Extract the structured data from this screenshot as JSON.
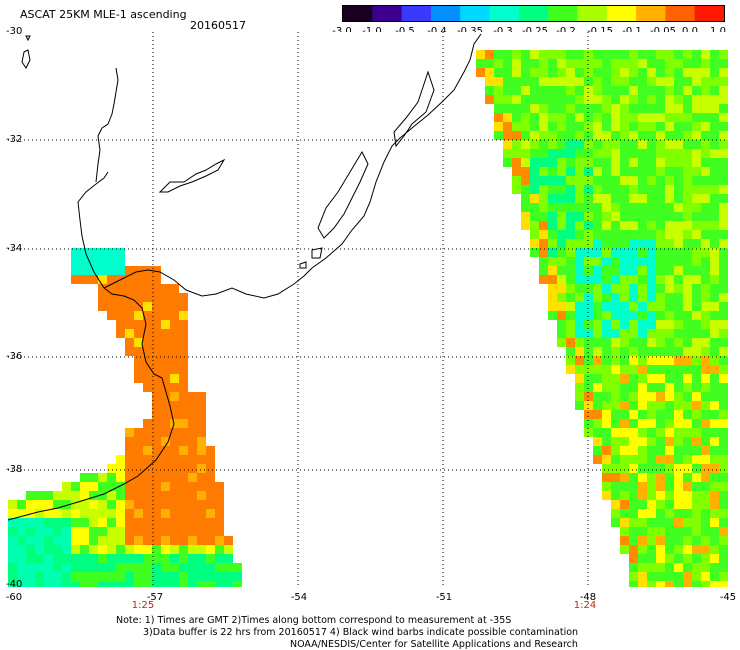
{
  "header": {
    "title": "ASCAT 25KM MLE-1 ascending",
    "date": "20160517"
  },
  "colorbar": {
    "labels": [
      "-3.0",
      "-1.0",
      "-0.5",
      "-0.4",
      "-0.35",
      "-0.3",
      "-0.25",
      "-0.2",
      "-0.15",
      "-0.1",
      "-0.05",
      "0.0",
      "1.0"
    ],
    "colors": [
      "#1a0020",
      "#3b0090",
      "#3a3aff",
      "#0090ff",
      "#00d8ff",
      "#00ffcc",
      "#00ff80",
      "#40ff20",
      "#a8ff00",
      "#ffff00",
      "#ffb000",
      "#ff6000",
      "#ff1800"
    ]
  },
  "axes": {
    "lat_labels": [
      "-30",
      "-32",
      "-34",
      "-36",
      "-38",
      "-40"
    ],
    "lon_labels": [
      "-60",
      "-57",
      "-54",
      "-51",
      "-48",
      "-45"
    ],
    "time_labels": [
      "1:25",
      "1:24"
    ]
  },
  "notes": {
    "line1": "Note: 1) Times are GMT 2)Times along bottom correspond to measurement at -35S",
    "line2": "3)Data buffer is 22 hrs from 20160517 4) Black wind barbs indicate possible contamination",
    "line3": "NOAA/NESDIS/Center for Satellite Applications and Research"
  }
}
